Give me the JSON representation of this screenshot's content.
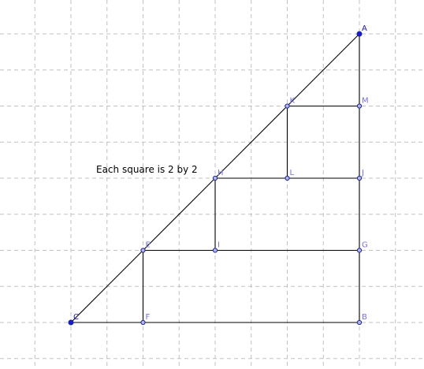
{
  "note": "Each square is 2 by 2",
  "grid": {
    "cols": [
      -2,
      24
    ],
    "rows": [
      -1,
      22
    ]
  },
  "points": [
    {
      "id": "A",
      "label": "A",
      "x": 20,
      "y": 20,
      "free": true
    },
    {
      "id": "B",
      "label": "B",
      "x": 20,
      "y": 0,
      "free": false
    },
    {
      "id": "C",
      "label": "C",
      "x": 0,
      "y": 0,
      "free": true
    },
    {
      "id": "E",
      "label": "E",
      "x": 5,
      "y": 5,
      "free": false
    },
    {
      "id": "F",
      "label": "F",
      "x": 5,
      "y": 0,
      "free": false
    },
    {
      "id": "G",
      "label": "G",
      "x": 20,
      "y": 5,
      "free": false
    },
    {
      "id": "H",
      "label": "H",
      "x": 10,
      "y": 10,
      "free": false
    },
    {
      "id": "I",
      "label": "I",
      "x": 10,
      "y": 5,
      "free": false
    },
    {
      "id": "J",
      "label": "J",
      "x": 20,
      "y": 10,
      "free": false
    },
    {
      "id": "K",
      "label": "K",
      "x": 15,
      "y": 15,
      "free": false
    },
    {
      "id": "L",
      "label": "L",
      "x": 15,
      "y": 10,
      "free": false
    },
    {
      "id": "M",
      "label": "M",
      "x": 20,
      "y": 15,
      "free": false
    }
  ],
  "segments": [
    [
      "C",
      "A"
    ],
    [
      "C",
      "B"
    ],
    [
      "A",
      "B"
    ],
    [
      "E",
      "F"
    ],
    [
      "E",
      "G"
    ],
    [
      "H",
      "I"
    ],
    [
      "H",
      "J"
    ],
    [
      "K",
      "L"
    ],
    [
      "K",
      "M"
    ]
  ]
}
